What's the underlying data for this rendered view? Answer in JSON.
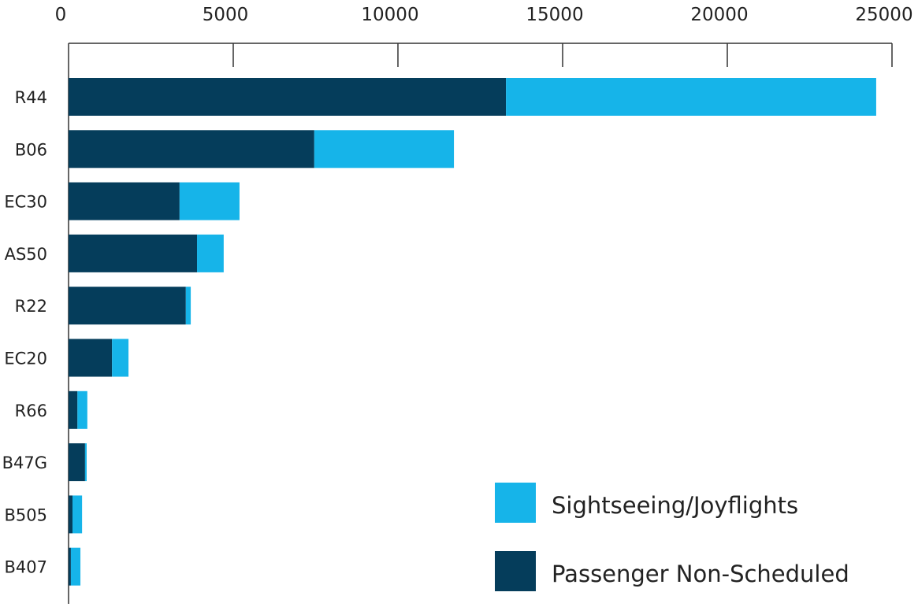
{
  "chart_data": {
    "type": "bar",
    "orientation": "horizontal",
    "stacked": true,
    "title": "",
    "xlabel": "",
    "ylabel": "",
    "xlim": [
      0,
      25000
    ],
    "x_ticks": [
      0,
      5000,
      10000,
      15000,
      20000,
      25000
    ],
    "x_tick_labels": [
      "0",
      "5000",
      "10000",
      "15000",
      "20000",
      "25000"
    ],
    "categories": [
      "R44",
      "B06",
      "EC30",
      "AS50",
      "R22",
      "EC20",
      "R66",
      "B47G",
      "B505",
      "B407"
    ],
    "series": [
      {
        "name": "Passenger Non-Scheduled",
        "color": "#053d5b",
        "values": [
          13280,
          7460,
          3370,
          3900,
          3560,
          1320,
          270,
          500,
          120,
          70
        ]
      },
      {
        "name": "Sightseeing/Joyflights",
        "color": "#16b4e9",
        "values": [
          11240,
          4240,
          1820,
          810,
          150,
          500,
          300,
          50,
          290,
          290
        ]
      }
    ],
    "legend": {
      "position": "bottom-right",
      "entries": [
        {
          "label": "Sightseeing/Joyflights",
          "color": "#16b4e9"
        },
        {
          "label": "Passenger Non-Scheduled",
          "color": "#053d5b"
        }
      ]
    },
    "grid": false
  }
}
